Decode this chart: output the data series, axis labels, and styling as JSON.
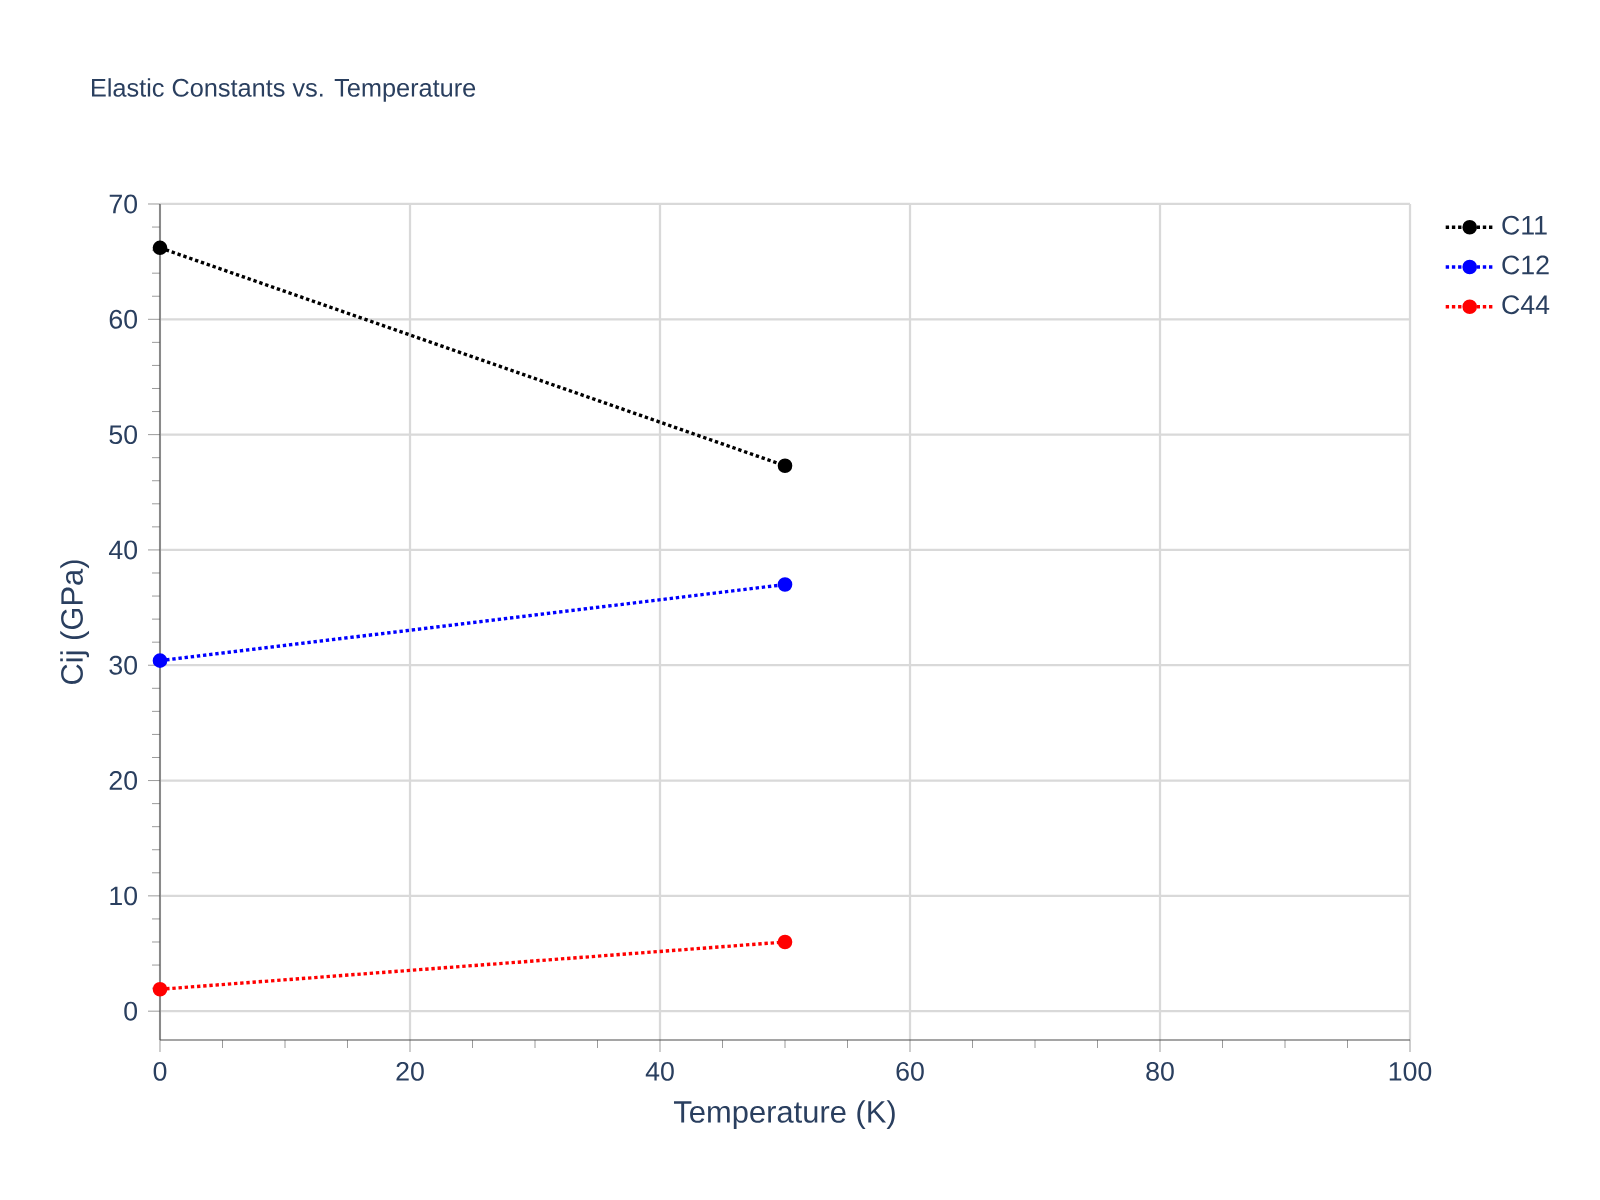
{
  "chart_data": {
    "type": "line",
    "title": "Elastic Constants vs. Temperature",
    "xlabel": "Temperature (K)",
    "ylabel": "Cij (GPa)",
    "x": [
      0,
      50
    ],
    "series": [
      {
        "name": "C11",
        "color": "#000000",
        "values": [
          66.2,
          47.3
        ]
      },
      {
        "name": "C12",
        "color": "#0000ff",
        "values": [
          30.4,
          37.0
        ]
      },
      {
        "name": "C44",
        "color": "#ff0000",
        "values": [
          1.9,
          6.0
        ]
      }
    ],
    "xlim": [
      0,
      100
    ],
    "ylim": [
      -2.5,
      70
    ],
    "xticks": [
      0,
      20,
      40,
      60,
      80,
      100
    ],
    "yticks": [
      0,
      10,
      20,
      30,
      40,
      50,
      60,
      70
    ],
    "grid": true,
    "legend": "top right",
    "marker": "circle",
    "line_style": "dotted"
  }
}
